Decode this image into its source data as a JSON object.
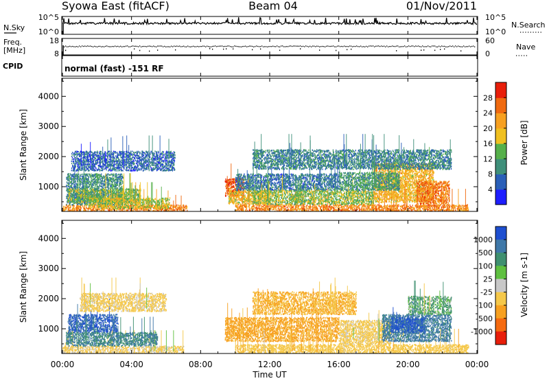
{
  "header": {
    "station": "Syowa East (fitACF)",
    "beam": "Beam 04",
    "date": "01/Nov/2011"
  },
  "summary_panels": {
    "nsky_label": "N.Sky",
    "nsky_ticks": [
      "10^5",
      "10^0"
    ],
    "nsearch_label": "N.Search",
    "nsearch_ticks": [
      "10^5",
      "10^0"
    ],
    "freq_label": "Freq.",
    "freq_unit": "[MHz]",
    "freq_ticks": [
      "18",
      "8"
    ],
    "nave_label": "Nave",
    "nave_ticks": [
      "60",
      "0"
    ],
    "cpid_label": "CPID",
    "cpid_value": "normal (fast) -151 RF"
  },
  "axes": {
    "xlabel": "Time UT",
    "x_ticks": [
      "00:00",
      "04:00",
      "08:00",
      "12:00",
      "16:00",
      "20:00",
      "00:00"
    ],
    "ylabel": "Slant Range [km]",
    "y_ticks": [
      "1000",
      "2000",
      "3000",
      "4000"
    ],
    "ylim": [
      180,
      4600
    ],
    "xlim_hours": [
      0,
      24
    ]
  },
  "colors": {
    "power": [
      "#1e1eff",
      "#2a5fb8",
      "#3f8f7a",
      "#56b04a",
      "#f0c020",
      "#f7a020",
      "#f06a10",
      "#e81e0a"
    ],
    "velocity": [
      "#1e4fd0",
      "#3f78a8",
      "#3f9070",
      "#5fc040",
      "#c8c8c8",
      "#f5c84a",
      "#f7a020",
      "#f56a10",
      "#e81e0a"
    ]
  },
  "chart_data": [
    {
      "type": "heatmap",
      "name": "power",
      "colorbar_title": "Power [dB]",
      "colorbar_ticks": [
        "4",
        "8",
        "12",
        "16",
        "20",
        "24",
        "28"
      ],
      "colorbar_range": [
        0,
        32
      ],
      "blobs": [
        {
          "t0": 0.0,
          "t1": 7.2,
          "r0": 200,
          "r1": 420,
          "level": 24
        },
        {
          "t0": 0.2,
          "t1": 3.5,
          "r0": 420,
          "r1": 1450,
          "level": 10
        },
        {
          "t0": 0.3,
          "t1": 4.5,
          "r0": 500,
          "r1": 950,
          "level": 14
        },
        {
          "t0": 1.5,
          "t1": 6.2,
          "r0": 300,
          "r1": 650,
          "level": 17
        },
        {
          "t0": 0.5,
          "t1": 6.5,
          "r0": 1550,
          "r1": 2200,
          "level": 7
        },
        {
          "t0": 9.4,
          "t1": 10.5,
          "r0": 700,
          "r1": 1300,
          "level": 27
        },
        {
          "t0": 9.6,
          "t1": 12.0,
          "r0": 450,
          "r1": 900,
          "level": 19
        },
        {
          "t0": 10.0,
          "t1": 23.5,
          "r0": 200,
          "r1": 430,
          "level": 24
        },
        {
          "t0": 10.0,
          "t1": 16.0,
          "r0": 900,
          "r1": 1450,
          "level": 8
        },
        {
          "t0": 11.0,
          "t1": 18.0,
          "r0": 430,
          "r1": 900,
          "level": 15
        },
        {
          "t0": 18.0,
          "t1": 21.5,
          "r0": 500,
          "r1": 1800,
          "level": 20
        },
        {
          "t0": 20.5,
          "t1": 22.4,
          "r0": 450,
          "r1": 1200,
          "level": 25
        },
        {
          "t0": 11.0,
          "t1": 22.5,
          "r0": 1600,
          "r1": 2250,
          "level": 9
        },
        {
          "t0": 16.0,
          "t1": 19.5,
          "r0": 900,
          "r1": 1500,
          "level": 11
        }
      ]
    },
    {
      "type": "heatmap",
      "name": "velocity",
      "colorbar_title": "Velocity [m s-1]",
      "colorbar_ticks": [
        "1000",
        "500",
        "100",
        "25",
        "-25",
        "-100",
        "-500",
        "-1000"
      ],
      "colorbar_range": [
        -1250,
        1250
      ],
      "blobs": [
        {
          "t0": 0.0,
          "t1": 7.0,
          "r0": 200,
          "r1": 450,
          "level": -100
        },
        {
          "t0": 0.3,
          "t1": 3.2,
          "r0": 900,
          "r1": 1500,
          "level": 800
        },
        {
          "t0": 0.2,
          "t1": 5.5,
          "r0": 450,
          "r1": 900,
          "level": 300
        },
        {
          "t0": 1.0,
          "t1": 6.0,
          "r0": 1600,
          "r1": 2200,
          "level": -120
        },
        {
          "t0": 9.4,
          "t1": 16.0,
          "r0": 600,
          "r1": 1400,
          "level": -400
        },
        {
          "t0": 10.0,
          "t1": 23.5,
          "r0": 200,
          "r1": 500,
          "level": -200
        },
        {
          "t0": 11.0,
          "t1": 17.0,
          "r0": 1500,
          "r1": 2250,
          "level": -300
        },
        {
          "t0": 16.0,
          "t1": 19.0,
          "r0": 500,
          "r1": 1300,
          "level": -120
        },
        {
          "t0": 18.5,
          "t1": 22.5,
          "r0": 600,
          "r1": 1500,
          "level": 400
        },
        {
          "t0": 19.0,
          "t1": 21.0,
          "r0": 900,
          "r1": 1400,
          "level": 900
        },
        {
          "t0": 20.0,
          "t1": 22.5,
          "r0": 1500,
          "r1": 2100,
          "level": 60
        }
      ]
    }
  ]
}
